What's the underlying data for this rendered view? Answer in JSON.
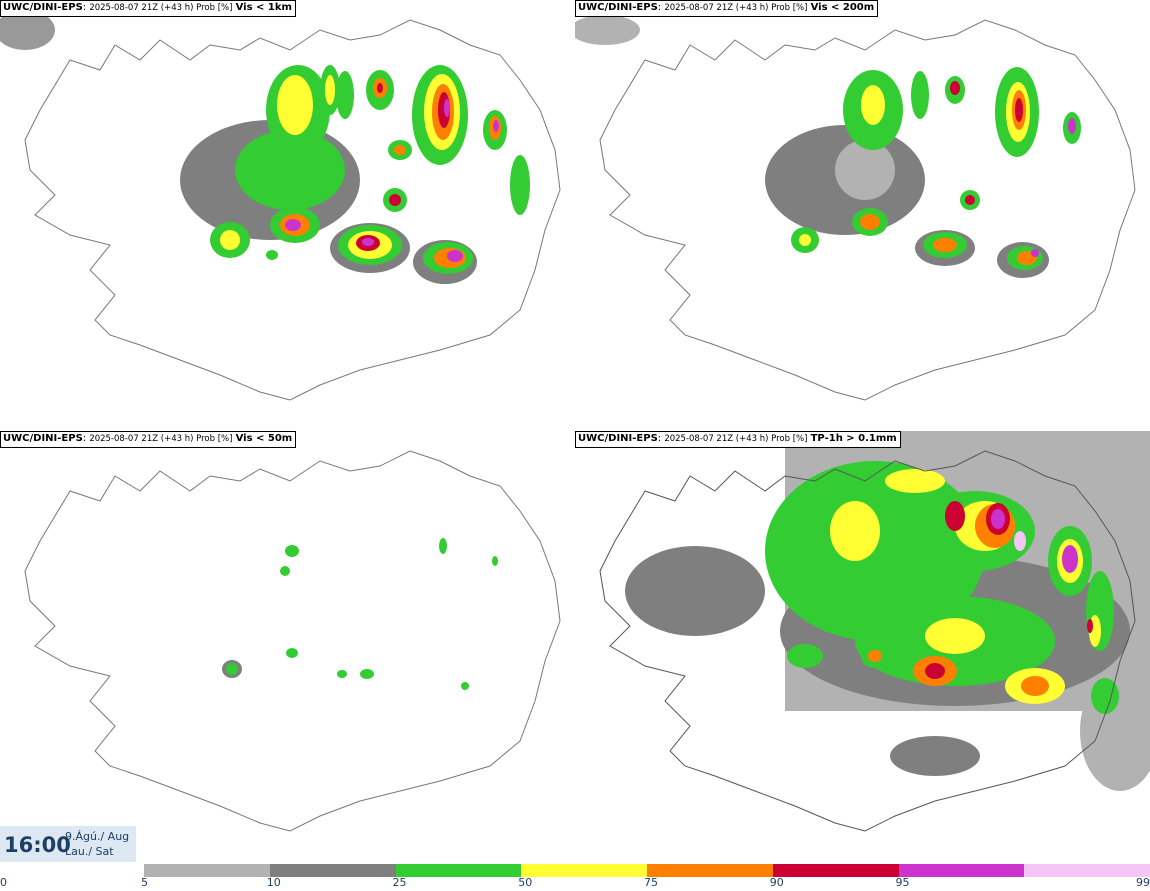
{
  "panels": [
    {
      "model": "UWC/DINI-EPS",
      "meta": "2025-08-07 21Z (+43 h) Prob [%]",
      "param": "Vis < 1km"
    },
    {
      "model": "UWC/DINI-EPS",
      "meta": "2025-08-07 21Z (+43 h) Prob [%]",
      "param": "Vis < 200m"
    },
    {
      "model": "UWC/DINI-EPS",
      "meta": "2025-08-07 21Z (+43 h) Prob [%]",
      "param": "Vis < 50m"
    },
    {
      "model": "UWC/DINI-EPS",
      "meta": "2025-08-07 21Z (+43 h) Prob [%]",
      "param": "TP-1h > 0.1mm"
    }
  ],
  "timestamp": {
    "time": "16:00",
    "date_line1": "9.Ágú./ Aug",
    "date_line2": "Lau./ Sat"
  },
  "legend": {
    "ticks": [
      "0",
      "5",
      "10",
      "25",
      "50",
      "75",
      "90",
      "95",
      "99"
    ],
    "colors": [
      "#b2b2b2",
      "#7f7f7f",
      "#33cc33",
      "#ffff33",
      "#ff7f00",
      "#cc0033",
      "#cc33cc",
      "#f5c6f5"
    ]
  }
}
